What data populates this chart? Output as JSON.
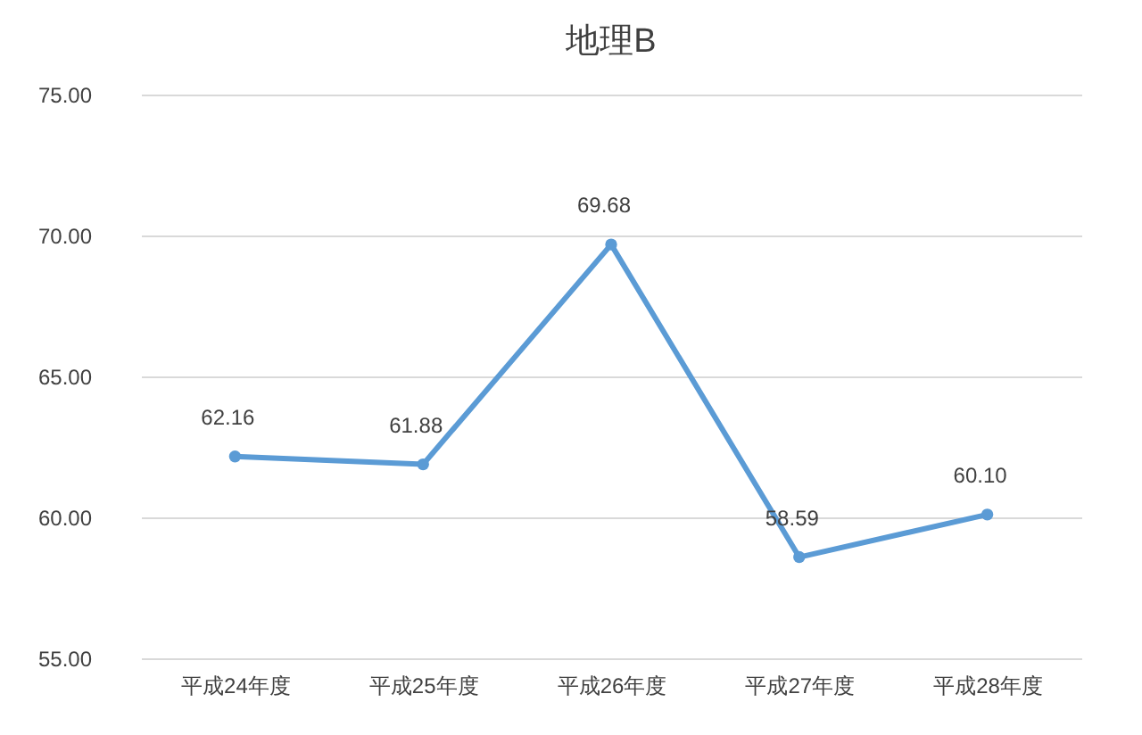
{
  "chart_data": {
    "type": "line",
    "title": "地理B",
    "categories": [
      "平成24年度",
      "平成25年度",
      "平成26年度",
      "平成27年度",
      "平成28年度"
    ],
    "series": [
      {
        "color": "#5b9bd5",
        "values": [
          62.16,
          61.88,
          69.68,
          58.59,
          60.1
        ],
        "value_labels": [
          "62.16",
          "61.88",
          "69.68",
          "58.59",
          "60.10"
        ]
      }
    ],
    "ylim": [
      55,
      75
    ],
    "yticks": [
      {
        "value": 55,
        "label": "55.00"
      },
      {
        "value": 60,
        "label": "60.00"
      },
      {
        "value": 65,
        "label": "65.00"
      },
      {
        "value": 70,
        "label": "70.00"
      },
      {
        "value": 75,
        "label": "75.00"
      }
    ],
    "grid": "y",
    "marker": "circle",
    "line_style": "solid"
  }
}
